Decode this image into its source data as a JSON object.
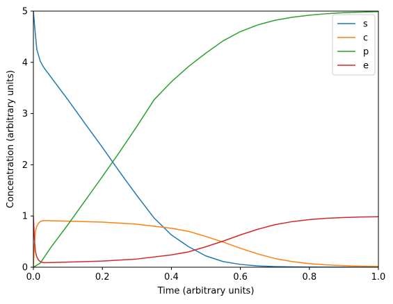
{
  "chart_data": {
    "type": "line",
    "title": "",
    "xlabel": "Time (arbitrary units)",
    "ylabel": "Concentration (arbitrary units)",
    "xlim": [
      0,
      1
    ],
    "ylim": [
      0,
      5
    ],
    "xticks": [
      "0.0",
      "0.2",
      "0.4",
      "0.6",
      "0.8",
      "1.0"
    ],
    "yticks": [
      "0",
      "1",
      "2",
      "3",
      "4",
      "5"
    ],
    "grid": false,
    "legend_position": "top-right",
    "series": [
      {
        "name": "s",
        "color": "#1f77b4",
        "x": [
          0,
          0.005,
          0.01,
          0.02,
          0.03,
          0.05,
          0.1,
          0.15,
          0.2,
          0.25,
          0.3,
          0.35,
          0.4,
          0.45,
          0.5,
          0.55,
          0.6,
          0.65,
          0.7,
          0.75,
          0.8,
          0.85,
          0.9,
          0.95,
          1.0
        ],
        "y": [
          5.0,
          4.6,
          4.25,
          4.02,
          3.9,
          3.72,
          3.27,
          2.8,
          2.34,
          1.86,
          1.4,
          0.96,
          0.63,
          0.4,
          0.22,
          0.11,
          0.055,
          0.025,
          0.012,
          0.006,
          0.003,
          0.0015,
          0.001,
          0.0005,
          0.0002
        ]
      },
      {
        "name": "c",
        "color": "#ff7f0e",
        "x": [
          0,
          0.003,
          0.006,
          0.01,
          0.015,
          0.02,
          0.025,
          0.03,
          0.04,
          0.1,
          0.2,
          0.3,
          0.4,
          0.45,
          0.5,
          0.55,
          0.6,
          0.65,
          0.7,
          0.75,
          0.8,
          0.85,
          0.9,
          0.95,
          1.0
        ],
        "y": [
          0,
          0.45,
          0.7,
          0.8,
          0.86,
          0.89,
          0.905,
          0.91,
          0.91,
          0.9,
          0.88,
          0.84,
          0.76,
          0.7,
          0.6,
          0.49,
          0.37,
          0.26,
          0.17,
          0.11,
          0.07,
          0.045,
          0.03,
          0.02,
          0.015
        ]
      },
      {
        "name": "p",
        "color": "#2ca02c",
        "x": [
          0,
          0.02,
          0.05,
          0.1,
          0.15,
          0.2,
          0.25,
          0.3,
          0.35,
          0.4,
          0.45,
          0.5,
          0.55,
          0.6,
          0.65,
          0.7,
          0.75,
          0.8,
          0.85,
          0.9,
          0.95,
          1.0
        ],
        "y": [
          0,
          0.08,
          0.38,
          0.83,
          1.3,
          1.77,
          2.25,
          2.75,
          3.27,
          3.62,
          3.92,
          4.18,
          4.42,
          4.6,
          4.73,
          4.82,
          4.88,
          4.92,
          4.95,
          4.97,
          4.98,
          4.99
        ]
      },
      {
        "name": "e",
        "color": "#d62728",
        "x": [
          0,
          0.003,
          0.006,
          0.01,
          0.015,
          0.02,
          0.025,
          0.03,
          0.04,
          0.1,
          0.2,
          0.3,
          0.4,
          0.45,
          0.5,
          0.55,
          0.6,
          0.65,
          0.7,
          0.75,
          0.8,
          0.85,
          0.9,
          0.95,
          1.0
        ],
        "y": [
          1.0,
          0.55,
          0.3,
          0.2,
          0.14,
          0.11,
          0.095,
          0.09,
          0.09,
          0.1,
          0.12,
          0.16,
          0.24,
          0.3,
          0.4,
          0.51,
          0.63,
          0.74,
          0.83,
          0.89,
          0.93,
          0.955,
          0.97,
          0.98,
          0.985
        ]
      }
    ]
  }
}
